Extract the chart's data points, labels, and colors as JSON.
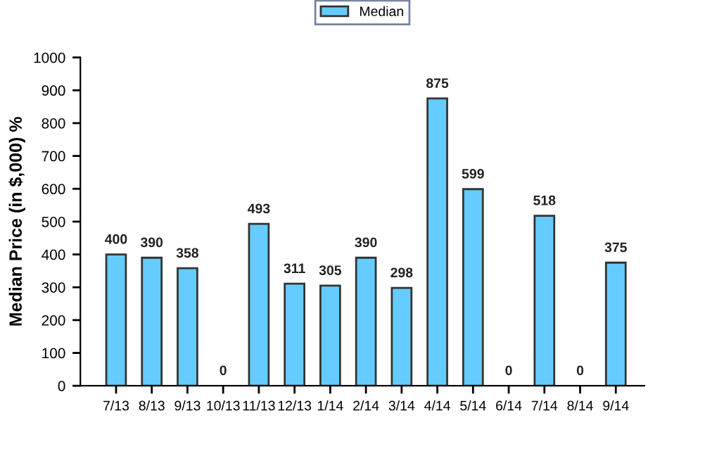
{
  "chart_data": {
    "type": "bar",
    "ylabel": "Median Price (in $,000) %",
    "categories": [
      "7/13",
      "8/13",
      "9/13",
      "10/13",
      "11/13",
      "12/13",
      "1/14",
      "2/14",
      "3/14",
      "4/14",
      "5/14",
      "6/14",
      "7/14",
      "8/14",
      "9/14"
    ],
    "series": [
      {
        "name": "Median",
        "color": "#66ccff",
        "values": [
          400,
          390,
          358,
          0,
          493,
          311,
          305,
          390,
          298,
          875,
          599,
          0,
          518,
          0,
          375
        ]
      }
    ],
    "ylim": [
      0,
      1000
    ],
    "yticks": [
      0,
      100,
      200,
      300,
      400,
      500,
      600,
      700,
      800,
      900,
      1000
    ],
    "data_labels": true,
    "legend": "top",
    "grid": false
  }
}
